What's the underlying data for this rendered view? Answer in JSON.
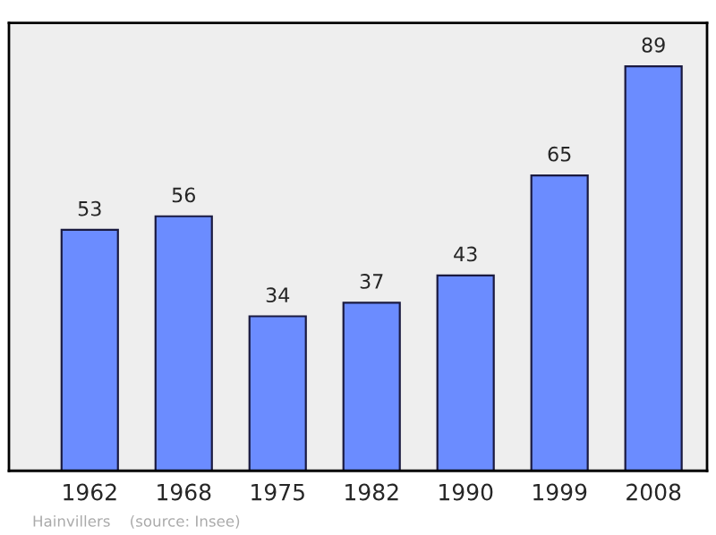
{
  "chart_data": {
    "type": "bar",
    "categories": [
      "1962",
      "1968",
      "1975",
      "1982",
      "1990",
      "1999",
      "2008"
    ],
    "values": [
      53,
      56,
      34,
      37,
      43,
      65,
      89
    ],
    "color": "#6b8cff",
    "data_labels": true,
    "grid": false,
    "legend": false,
    "tick_labels": "x",
    "annotations": [
      "Hainvillers    (source: Insee)"
    ]
  }
}
